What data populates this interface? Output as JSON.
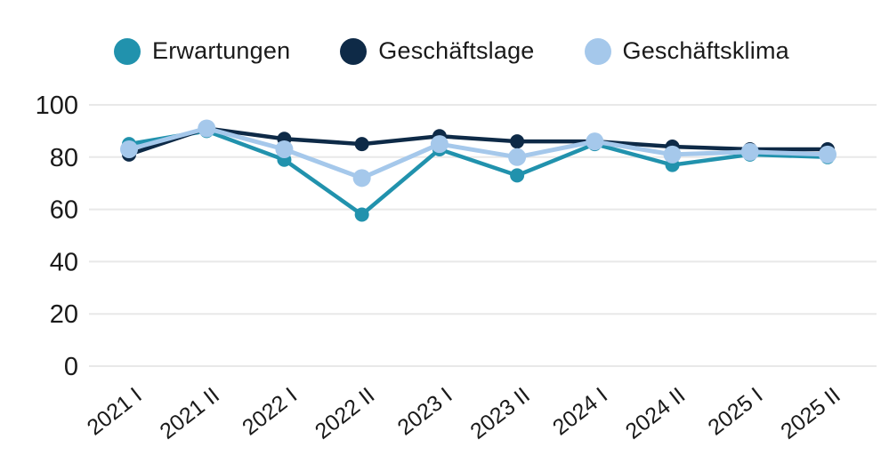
{
  "legend": {
    "items": [
      {
        "label": "Erwartungen",
        "color": "#2192ad"
      },
      {
        "label": "Geschäftslage",
        "color": "#0e2a47"
      },
      {
        "label": "Geschäftsklima",
        "color": "#a5c8eb"
      }
    ]
  },
  "chart_data": {
    "type": "line",
    "title": "",
    "xlabel": "",
    "ylabel": "",
    "categories": [
      "2021 I",
      "2021 II",
      "2022 I",
      "2022 II",
      "2023 I",
      "2023 II",
      "2024 I",
      "2024 II",
      "2025 I",
      "2025 II"
    ],
    "series": [
      {
        "name": "Erwartungen",
        "color": "#2192ad",
        "line_width": 4.5,
        "marker_radius": 8,
        "values": [
          85,
          90,
          79,
          58,
          83,
          73,
          85,
          77,
          81,
          80
        ]
      },
      {
        "name": "Geschäftslage",
        "color": "#0e2a47",
        "line_width": 4.5,
        "marker_radius": 8,
        "values": [
          81,
          91,
          87,
          85,
          88,
          86,
          86,
          84,
          83,
          83
        ]
      },
      {
        "name": "Geschäftsklima",
        "color": "#a5c8eb",
        "line_width": 5,
        "marker_radius": 10,
        "values": [
          83,
          91,
          83,
          72,
          85,
          80,
          86,
          81,
          82,
          81
        ]
      }
    ],
    "ylim": [
      0,
      100
    ],
    "yticks": [
      0,
      20,
      40,
      60,
      80,
      100
    ],
    "grid": true,
    "legend_position": "top",
    "gridline_color": "#e8e8e8",
    "axis_text_color": "#1a1a1a"
  }
}
